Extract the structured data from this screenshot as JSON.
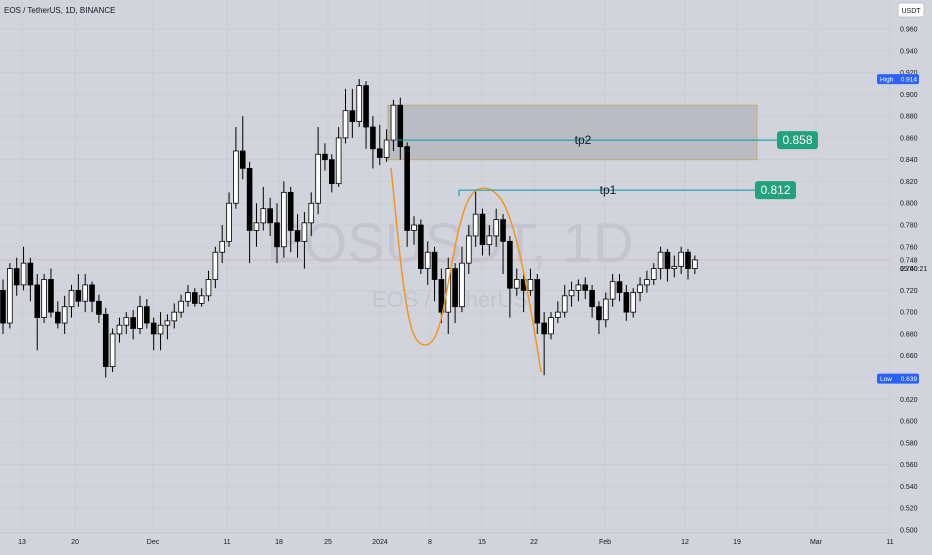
{
  "header": {
    "symbol_line": "EOS / TetherUS, 1D, BINANCE"
  },
  "price_axis": {
    "currency": "USDT",
    "ticks": [
      "0.960",
      "0.940",
      "0.920",
      "0.900",
      "0.880",
      "0.860",
      "0.840",
      "0.820",
      "0.800",
      "0.780",
      "0.760",
      "0.740",
      "0.720",
      "0.700",
      "0.680",
      "0.660",
      "0.640",
      "0.620",
      "0.600",
      "0.580",
      "0.560",
      "0.540",
      "0.520",
      "0.500"
    ],
    "high_label": "High",
    "high_value": "0.914",
    "low_label": "Low",
    "low_value": "0.639",
    "last_price": "0.748",
    "countdown": "15:00:21"
  },
  "time_axis": {
    "ticks": [
      "13",
      "20",
      "Dec",
      "11",
      "18",
      "25",
      "2024",
      "8",
      "15",
      "22",
      "Feb",
      "12",
      "19",
      "Mar",
      "11"
    ]
  },
  "watermark": {
    "symbol": "EOSUSDT, 1D",
    "description": "EOS / TetherUS"
  },
  "annotations": {
    "tp1_label": "tp1",
    "tp1_value": "0.812",
    "tp2_label": "tp2",
    "tp2_value": "0.858"
  },
  "colors": {
    "background": "#d1d4dc",
    "grid": "#c7cad2",
    "candle_up_body": "#ffffff",
    "candle_down_body": "#000000",
    "wick": "#000000",
    "target_line": "#0097a7",
    "target_badge": "#22a17d",
    "zone_fill": "#b9bcc4",
    "zone_border": "#c9a96e",
    "arc": "#f7941d",
    "price_line": "#d4b8c2",
    "high_low_badge": "#2962ff",
    "watermark": "#c3c6ce"
  },
  "chart_data": {
    "type": "candlestick",
    "symbol": "EOS / TetherUS",
    "interval": "1D",
    "exchange": "BINANCE",
    "ylim": [
      0.5,
      0.97
    ],
    "x_tick_labels": [
      "13",
      "20",
      "Dec",
      "11",
      "18",
      "25",
      "2024",
      "8",
      "15",
      "22",
      "Feb",
      "12",
      "19",
      "Mar",
      "11"
    ],
    "high": 0.914,
    "low": 0.639,
    "last_close": 0.748,
    "targets": [
      {
        "name": "tp1",
        "value": 0.812
      },
      {
        "name": "tp2",
        "value": 0.858
      }
    ],
    "zone": {
      "top": 0.89,
      "bottom": 0.84
    },
    "candles": [
      [
        0.72,
        0.69,
        0.73,
        0.68
      ],
      [
        0.69,
        0.74,
        0.745,
        0.685
      ],
      [
        0.74,
        0.725,
        0.75,
        0.715
      ],
      [
        0.725,
        0.745,
        0.76,
        0.72
      ],
      [
        0.745,
        0.725,
        0.75,
        0.71
      ],
      [
        0.725,
        0.695,
        0.735,
        0.665
      ],
      [
        0.695,
        0.73,
        0.735,
        0.69
      ],
      [
        0.73,
        0.7,
        0.74,
        0.695
      ],
      [
        0.7,
        0.69,
        0.71,
        0.685
      ],
      [
        0.69,
        0.705,
        0.715,
        0.68
      ],
      [
        0.705,
        0.72,
        0.725,
        0.695
      ],
      [
        0.72,
        0.71,
        0.735,
        0.705
      ],
      [
        0.71,
        0.725,
        0.735,
        0.7
      ],
      [
        0.725,
        0.71,
        0.728,
        0.7
      ],
      [
        0.71,
        0.698,
        0.716,
        0.69
      ],
      [
        0.698,
        0.65,
        0.704,
        0.64
      ],
      [
        0.65,
        0.68,
        0.685,
        0.645
      ],
      [
        0.68,
        0.688,
        0.695,
        0.672
      ],
      [
        0.688,
        0.695,
        0.7,
        0.68
      ],
      [
        0.695,
        0.685,
        0.702,
        0.675
      ],
      [
        0.685,
        0.705,
        0.715,
        0.68
      ],
      [
        0.705,
        0.69,
        0.712,
        0.685
      ],
      [
        0.69,
        0.68,
        0.695,
        0.665
      ],
      [
        0.68,
        0.688,
        0.7,
        0.665
      ],
      [
        0.688,
        0.692,
        0.698,
        0.675
      ],
      [
        0.692,
        0.7,
        0.708,
        0.685
      ],
      [
        0.7,
        0.71,
        0.716,
        0.695
      ],
      [
        0.71,
        0.718,
        0.725,
        0.705
      ],
      [
        0.718,
        0.708,
        0.722,
        0.705
      ],
      [
        0.708,
        0.715,
        0.722,
        0.705
      ],
      [
        0.715,
        0.73,
        0.738,
        0.71
      ],
      [
        0.73,
        0.755,
        0.76,
        0.722
      ],
      [
        0.755,
        0.765,
        0.78,
        0.745
      ],
      [
        0.765,
        0.8,
        0.81,
        0.76
      ],
      [
        0.8,
        0.848,
        0.87,
        0.795
      ],
      [
        0.848,
        0.832,
        0.88,
        0.822
      ],
      [
        0.832,
        0.775,
        0.838,
        0.745
      ],
      [
        0.775,
        0.782,
        0.8,
        0.76
      ],
      [
        0.782,
        0.795,
        0.815,
        0.775
      ],
      [
        0.795,
        0.782,
        0.805,
        0.77
      ],
      [
        0.782,
        0.76,
        0.8,
        0.745
      ],
      [
        0.76,
        0.81,
        0.82,
        0.75
      ],
      [
        0.81,
        0.775,
        0.815,
        0.755
      ],
      [
        0.775,
        0.765,
        0.79,
        0.75
      ],
      [
        0.765,
        0.782,
        0.792,
        0.74
      ],
      [
        0.782,
        0.8,
        0.81,
        0.77
      ],
      [
        0.8,
        0.845,
        0.87,
        0.79
      ],
      [
        0.845,
        0.84,
        0.855,
        0.83
      ],
      [
        0.84,
        0.818,
        0.845,
        0.81
      ],
      [
        0.818,
        0.86,
        0.87,
        0.815
      ],
      [
        0.86,
        0.885,
        0.905,
        0.855
      ],
      [
        0.885,
        0.875,
        0.905,
        0.86
      ],
      [
        0.875,
        0.908,
        0.914,
        0.87
      ],
      [
        0.908,
        0.87,
        0.912,
        0.85
      ],
      [
        0.87,
        0.85,
        0.88,
        0.832
      ],
      [
        0.85,
        0.842,
        0.872,
        0.835
      ],
      [
        0.842,
        0.858,
        0.868,
        0.838
      ],
      [
        0.858,
        0.89,
        0.895,
        0.848
      ],
      [
        0.89,
        0.852,
        0.897,
        0.84
      ],
      [
        0.852,
        0.775,
        0.856,
        0.76
      ],
      [
        0.775,
        0.78,
        0.788,
        0.762
      ],
      [
        0.78,
        0.74,
        0.785,
        0.735
      ],
      [
        0.74,
        0.755,
        0.765,
        0.725
      ],
      [
        0.755,
        0.73,
        0.76,
        0.71
      ],
      [
        0.73,
        0.7,
        0.74,
        0.69
      ],
      [
        0.7,
        0.74,
        0.75,
        0.68
      ],
      [
        0.74,
        0.705,
        0.745,
        0.69
      ],
      [
        0.705,
        0.745,
        0.76,
        0.7
      ],
      [
        0.745,
        0.77,
        0.78,
        0.735
      ],
      [
        0.77,
        0.79,
        0.812,
        0.76
      ],
      [
        0.79,
        0.762,
        0.795,
        0.752
      ],
      [
        0.762,
        0.77,
        0.78,
        0.752
      ],
      [
        0.77,
        0.785,
        0.795,
        0.76
      ],
      [
        0.785,
        0.765,
        0.79,
        0.735
      ],
      [
        0.765,
        0.722,
        0.77,
        0.695
      ],
      [
        0.722,
        0.73,
        0.74,
        0.715
      ],
      [
        0.73,
        0.72,
        0.735,
        0.7
      ],
      [
        0.72,
        0.73,
        0.74,
        0.715
      ],
      [
        0.73,
        0.69,
        0.735,
        0.68
      ],
      [
        0.69,
        0.68,
        0.7,
        0.642
      ],
      [
        0.68,
        0.695,
        0.7,
        0.675
      ],
      [
        0.695,
        0.7,
        0.71,
        0.69
      ],
      [
        0.7,
        0.715,
        0.725,
        0.695
      ],
      [
        0.715,
        0.72,
        0.728,
        0.705
      ],
      [
        0.72,
        0.725,
        0.73,
        0.71
      ],
      [
        0.725,
        0.72,
        0.732,
        0.712
      ],
      [
        0.72,
        0.705,
        0.725,
        0.695
      ],
      [
        0.705,
        0.693,
        0.71,
        0.68
      ],
      [
        0.693,
        0.712,
        0.718,
        0.686
      ],
      [
        0.712,
        0.728,
        0.735,
        0.705
      ],
      [
        0.728,
        0.718,
        0.735,
        0.71
      ],
      [
        0.718,
        0.7,
        0.725,
        0.692
      ],
      [
        0.7,
        0.718,
        0.722,
        0.695
      ],
      [
        0.718,
        0.725,
        0.732,
        0.71
      ],
      [
        0.725,
        0.73,
        0.738,
        0.718
      ],
      [
        0.73,
        0.74,
        0.745,
        0.725
      ],
      [
        0.74,
        0.755,
        0.76,
        0.73
      ],
      [
        0.755,
        0.74,
        0.758,
        0.728
      ],
      [
        0.74,
        0.742,
        0.752,
        0.732
      ],
      [
        0.742,
        0.755,
        0.76,
        0.735
      ],
      [
        0.755,
        0.74,
        0.758,
        0.73
      ],
      [
        0.74,
        0.748,
        0.752,
        0.735
      ]
    ]
  }
}
